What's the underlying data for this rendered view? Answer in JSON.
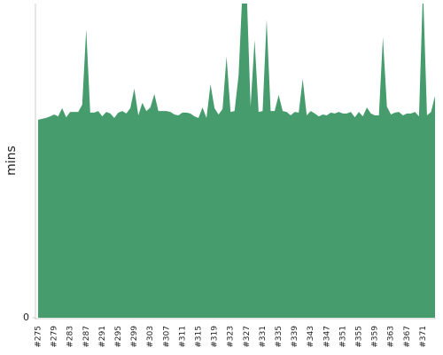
{
  "chart_data": {
    "type": "area",
    "ylabel": "mins",
    "color": "#469c6c",
    "categories": [
      "#275",
      null,
      null,
      null,
      "#279",
      null,
      null,
      null,
      "#283",
      null,
      null,
      null,
      "#287",
      null,
      null,
      null,
      "#291",
      null,
      null,
      null,
      "#295",
      null,
      null,
      null,
      "#299",
      null,
      null,
      null,
      "#303",
      null,
      null,
      null,
      "#307",
      null,
      null,
      null,
      "#311",
      null,
      null,
      null,
      "#315",
      null,
      null,
      null,
      "#319",
      null,
      null,
      null,
      "#323",
      null,
      null,
      null,
      "#327",
      null,
      null,
      null,
      "#331",
      null,
      null,
      null,
      "#335",
      null,
      null,
      null,
      "#339",
      null,
      null,
      null,
      "#343",
      null,
      null,
      null,
      "#347",
      null,
      null,
      null,
      "#351",
      null,
      null,
      null,
      "#355",
      null,
      null,
      null,
      "#359",
      null,
      null,
      null,
      "#363",
      null,
      null,
      null,
      "#367",
      null,
      null,
      null,
      "#371",
      null,
      null,
      null
    ],
    "values": [
      63.0,
      63.3,
      63.6,
      64.1,
      64.7,
      64.1,
      66.7,
      63.8,
      65.5,
      65.5,
      65.5,
      67.8,
      91.8,
      65.3,
      65.3,
      65.8,
      64.1,
      65.5,
      65.0,
      63.6,
      65.3,
      65.8,
      65.0,
      66.7,
      72.9,
      64.4,
      68.4,
      65.8,
      66.9,
      71.2,
      65.8,
      65.8,
      65.8,
      65.5,
      64.7,
      64.4,
      65.3,
      65.3,
      65.0,
      64.1,
      63.6,
      66.9,
      63.6,
      74.3,
      66.7,
      64.7,
      66.4,
      83.1,
      65.5,
      65.8,
      77.1,
      105,
      105,
      67.2,
      88.4,
      65.5,
      65.8,
      94.9,
      65.8,
      65.8,
      70.9,
      65.8,
      65.5,
      64.4,
      65.5,
      65.3,
      76.0,
      64.4,
      65.8,
      65.0,
      64.1,
      64.7,
      64.4,
      65.3,
      65.0,
      65.5,
      65.0,
      65.0,
      65.5,
      63.8,
      65.5,
      64.1,
      66.9,
      65.0,
      64.4,
      64.4,
      89.3,
      67.2,
      64.7,
      65.3,
      65.5,
      64.4,
      65.0,
      65.0,
      65.5,
      64.1,
      105,
      64.4,
      65.5,
      70.6
    ],
    "ylim": [
      0,
      100
    ],
    "yticks": [
      0
    ],
    "grid": false
  }
}
